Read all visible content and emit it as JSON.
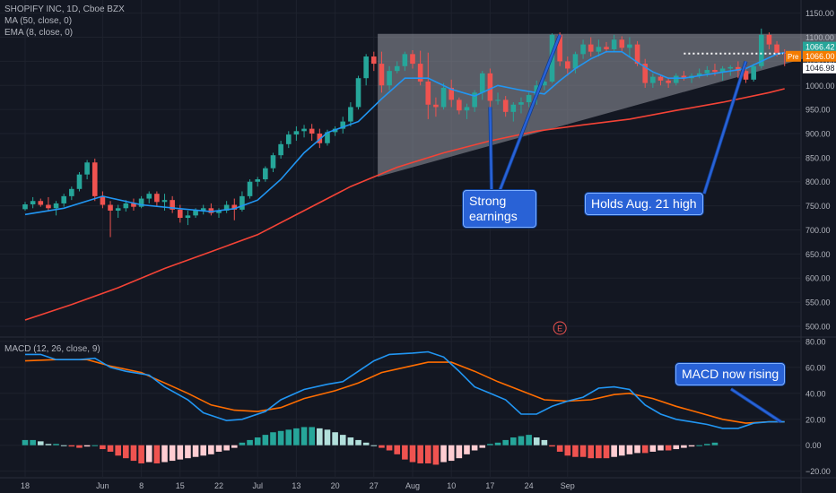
{
  "legend": {
    "line1": "SHOPIFY INC, 1D, Cboe BZX",
    "line2": "MA (50, close, 0)",
    "line3": "EMA (8, close, 0)",
    "macd": "MACD (12, 26, close, 9)"
  },
  "callouts": {
    "earnings": "Strong earnings",
    "holds": "Holds Aug. 21 high",
    "macd": "MACD now rising"
  },
  "price_tags": {
    "last": "1066.42",
    "pre_label": "Pre",
    "pre_value": "1066.00",
    "level": "1046.98"
  },
  "earnings_marker": "E",
  "colors": {
    "background": "#131722",
    "up": "#26a69a",
    "down": "#ef5350",
    "ema": "#2196f3",
    "ma": "#f44336",
    "macd_line": "#2196f3",
    "signal_line": "#ff6d00",
    "hist_up_strong": "#26a69a",
    "hist_up_weak": "#b2dfdb",
    "hist_down_strong": "#ef5350",
    "hist_down_weak": "#ffcdd2",
    "triangle": "#9598a1",
    "pre_tag": "#f57c00",
    "last_tag": "#26a69a"
  },
  "chart_data": [
    {
      "type": "candlestick",
      "title": "SHOPIFY INC, 1D, Cboe BZX",
      "ylim": [
        485,
        1168
      ],
      "y_ticks": [
        500,
        550,
        600,
        650,
        700,
        750,
        800,
        850,
        900,
        950,
        1000,
        1050,
        1100,
        1150
      ],
      "y_tick_labels": [
        "500.00",
        "550.00",
        "600.00",
        "650.00",
        "700.00",
        "750.00",
        "800.00",
        "850.00",
        "900.00",
        "950.00",
        "1000.00",
        "1050.00",
        "1100.00",
        "1150.00"
      ],
      "x_tick_labels": [
        "18",
        "Jun",
        "8",
        "15",
        "22",
        "Jul",
        "13",
        "20",
        "27",
        "Aug",
        "10",
        "17",
        "24",
        "Sep"
      ],
      "x_tick_days": [
        0,
        10,
        15,
        20,
        25,
        30,
        35,
        40,
        45,
        50,
        55,
        60,
        65,
        70
      ],
      "candles": [
        [
          743,
          758,
          740,
          753
        ],
        [
          753,
          768,
          745,
          760
        ],
        [
          760,
          765,
          748,
          752
        ],
        [
          752,
          768,
          738,
          745
        ],
        [
          745,
          760,
          730,
          755
        ],
        [
          755,
          775,
          748,
          770
        ],
        [
          770,
          790,
          762,
          785
        ],
        [
          785,
          820,
          780,
          815
        ],
        [
          815,
          845,
          805,
          840
        ],
        [
          840,
          848,
          760,
          770
        ],
        [
          770,
          780,
          745,
          752
        ],
        [
          752,
          760,
          685,
          740
        ],
        [
          740,
          752,
          725,
          745
        ],
        [
          745,
          762,
          738,
          755
        ],
        [
          755,
          765,
          740,
          748
        ],
        [
          748,
          770,
          745,
          765
        ],
        [
          765,
          780,
          755,
          775
        ],
        [
          775,
          780,
          750,
          758
        ],
        [
          758,
          775,
          740,
          762
        ],
        [
          762,
          770,
          735,
          742
        ],
        [
          742,
          752,
          715,
          725
        ],
        [
          725,
          740,
          710,
          730
        ],
        [
          730,
          745,
          725,
          740
        ],
        [
          740,
          752,
          732,
          745
        ],
        [
          745,
          755,
          730,
          735
        ],
        [
          735,
          745,
          725,
          740
        ],
        [
          740,
          760,
          735,
          752
        ],
        [
          752,
          765,
          720,
          742
        ],
        [
          742,
          780,
          738,
          770
        ],
        [
          770,
          805,
          765,
          800
        ],
        [
          800,
          810,
          790,
          805
        ],
        [
          805,
          832,
          800,
          828
        ],
        [
          828,
          860,
          820,
          855
        ],
        [
          855,
          885,
          848,
          878
        ],
        [
          878,
          905,
          870,
          898
        ],
        [
          898,
          915,
          885,
          905
        ],
        [
          905,
          918,
          892,
          910
        ],
        [
          910,
          920,
          885,
          900
        ],
        [
          900,
          910,
          870,
          880
        ],
        [
          880,
          908,
          875,
          903
        ],
        [
          903,
          915,
          895,
          910
        ],
        [
          910,
          935,
          900,
          925
        ],
        [
          925,
          965,
          915,
          955
        ],
        [
          955,
          1020,
          950,
          1015
        ],
        [
          1015,
          1065,
          1000,
          1060
        ],
        [
          1060,
          1070,
          1030,
          1045
        ],
        [
          1045,
          1070,
          985,
          1000
        ],
        [
          1000,
          1040,
          990,
          1030
        ],
        [
          1030,
          1050,
          1025,
          1040
        ],
        [
          1040,
          1070,
          1030,
          1065
        ],
        [
          1065,
          1073,
          1035,
          1045
        ],
        [
          1045,
          1072,
          1000,
          1008
        ],
        [
          1008,
          1068,
          930,
          960
        ],
        [
          960,
          975,
          935,
          955
        ],
        [
          955,
          1005,
          950,
          995
        ],
        [
          995,
          1012,
          955,
          970
        ],
        [
          970,
          975,
          940,
          948
        ],
        [
          948,
          962,
          930,
          955
        ],
        [
          955,
          990,
          945,
          985
        ],
        [
          985,
          1030,
          970,
          1025
        ],
        [
          1025,
          1035,
          950,
          968
        ],
        [
          968,
          985,
          960,
          970
        ],
        [
          970,
          978,
          935,
          945
        ],
        [
          945,
          965,
          925,
          960
        ],
        [
          960,
          975,
          942,
          965
        ],
        [
          965,
          985,
          955,
          980
        ],
        [
          980,
          1010,
          960,
          1000
        ],
        [
          1000,
          1015,
          990,
          1008
        ],
        [
          1008,
          1108,
          1005,
          1105
        ],
        [
          1105,
          1110,
          1040,
          1050
        ],
        [
          1050,
          1060,
          1020,
          1035
        ],
        [
          1035,
          1070,
          1025,
          1065
        ],
        [
          1065,
          1095,
          1055,
          1085
        ],
        [
          1085,
          1100,
          1060,
          1070
        ],
        [
          1070,
          1095,
          1060,
          1080
        ],
        [
          1080,
          1090,
          1068,
          1075
        ],
        [
          1075,
          1105,
          1070,
          1095
        ],
        [
          1095,
          1102,
          1070,
          1078
        ],
        [
          1078,
          1100,
          1060,
          1085
        ],
        [
          1085,
          1092,
          1040,
          1045
        ],
        [
          1045,
          1055,
          995,
          1005
        ],
        [
          1005,
          1025,
          995,
          1018
        ],
        [
          1018,
          1022,
          1000,
          1010
        ],
        [
          1010,
          1015,
          995,
          1005
        ],
        [
          1005,
          1025,
          1000,
          1020
        ],
        [
          1020,
          1030,
          1010,
          1015
        ],
        [
          1015,
          1025,
          1005,
          1020
        ],
        [
          1020,
          1035,
          1015,
          1025
        ],
        [
          1025,
          1040,
          1018,
          1032
        ],
        [
          1032,
          1045,
          1020,
          1028
        ],
        [
          1028,
          1040,
          1010,
          1035
        ],
        [
          1035,
          1042,
          1020,
          1038
        ],
        [
          1038,
          1050,
          1015,
          1030
        ],
        [
          1030,
          1040,
          1005,
          1012
        ],
        [
          1012,
          1045,
          1008,
          1040
        ],
        [
          1040,
          1118,
          1035,
          1105
        ],
        [
          1105,
          1110,
          1075,
          1085
        ],
        [
          1085,
          1092,
          1060,
          1068
        ],
        [
          1068,
          1075,
          1040,
          1066
        ]
      ],
      "ema8": [
        [
          0,
          732
        ],
        [
          5,
          745
        ],
        [
          10,
          770
        ],
        [
          15,
          752
        ],
        [
          20,
          744
        ],
        [
          24,
          738
        ],
        [
          27,
          744
        ],
        [
          30,
          762
        ],
        [
          33,
          805
        ],
        [
          36,
          860
        ],
        [
          39,
          902
        ],
        [
          43,
          925
        ],
        [
          46,
          972
        ],
        [
          49,
          1015
        ],
        [
          52,
          1015
        ],
        [
          55,
          992
        ],
        [
          58,
          978
        ],
        [
          61,
          1000
        ],
        [
          64,
          990
        ],
        [
          67,
          982
        ],
        [
          69,
          1010
        ],
        [
          71,
          1035
        ],
        [
          73,
          1055
        ],
        [
          75,
          1070
        ],
        [
          77,
          1070
        ],
        [
          79,
          1048
        ],
        [
          81,
          1028
        ],
        [
          83,
          1015
        ],
        [
          85,
          1015
        ],
        [
          87,
          1020
        ],
        [
          89,
          1025
        ],
        [
          91,
          1030
        ],
        [
          93,
          1035
        ],
        [
          95,
          1050
        ],
        [
          97,
          1065
        ],
        [
          98,
          1068
        ]
      ],
      "ma50": [
        [
          0,
          513
        ],
        [
          6,
          545
        ],
        [
          12,
          580
        ],
        [
          18,
          620
        ],
        [
          24,
          655
        ],
        [
          30,
          690
        ],
        [
          36,
          740
        ],
        [
          42,
          790
        ],
        [
          48,
          830
        ],
        [
          54,
          860
        ],
        [
          60,
          885
        ],
        [
          66,
          905
        ],
        [
          72,
          918
        ],
        [
          78,
          930
        ],
        [
          84,
          948
        ],
        [
          90,
          965
        ],
        [
          96,
          985
        ],
        [
          98,
          993
        ]
      ],
      "triangle": [
        [
          45.5,
          1107
        ],
        [
          112,
          1107
        ],
        [
          45.5,
          810
        ]
      ],
      "horizontal_level": 1066,
      "earnings_day": 69
    },
    {
      "type": "line",
      "title": "MACD (12, 26, close, 9)",
      "ylim": [
        -23,
        82
      ],
      "y_ticks": [
        -20,
        0,
        20,
        40,
        60,
        80
      ],
      "y_tick_labels": [
        "−20.00",
        "0.00",
        "20.00",
        "40.00",
        "60.00",
        "80.00"
      ],
      "series": [
        {
          "name": "MACD",
          "points": [
            [
              0,
              70
            ],
            [
              2,
              70
            ],
            [
              4,
              66
            ],
            [
              7,
              66
            ],
            [
              9,
              67
            ],
            [
              11,
              60
            ],
            [
              13,
              57
            ],
            [
              16,
              54
            ],
            [
              18,
              45
            ],
            [
              21,
              35
            ],
            [
              23,
              25
            ],
            [
              26,
              19
            ],
            [
              28,
              20
            ],
            [
              31,
              26
            ],
            [
              33,
              35
            ],
            [
              36,
              43
            ],
            [
              39,
              47
            ],
            [
              41,
              49
            ],
            [
              43,
              57
            ],
            [
              45,
              65
            ],
            [
              47,
              70
            ],
            [
              50,
              71
            ],
            [
              52,
              72
            ],
            [
              54,
              68
            ],
            [
              56,
              57
            ],
            [
              58,
              45
            ],
            [
              60,
              40
            ],
            [
              62,
              35
            ],
            [
              64,
              24
            ],
            [
              66,
              24
            ],
            [
              68,
              30
            ],
            [
              70,
              34
            ],
            [
              72,
              37
            ],
            [
              74,
              44
            ],
            [
              76,
              45
            ],
            [
              78,
              43
            ],
            [
              80,
              31
            ],
            [
              82,
              24
            ],
            [
              84,
              20
            ],
            [
              86,
              18
            ],
            [
              88,
              16
            ],
            [
              90,
              13
            ],
            [
              92,
              13
            ],
            [
              94,
              17
            ],
            [
              96,
              18
            ],
            [
              98,
              18
            ]
          ]
        },
        {
          "name": "Signal",
          "points": [
            [
              0,
              65
            ],
            [
              4,
              66
            ],
            [
              8,
              66
            ],
            [
              11,
              61
            ],
            [
              15,
              56
            ],
            [
              18,
              48
            ],
            [
              21,
              40
            ],
            [
              24,
              31
            ],
            [
              27,
              27
            ],
            [
              30,
              26
            ],
            [
              33,
              29
            ],
            [
              36,
              36
            ],
            [
              40,
              42
            ],
            [
              43,
              48
            ],
            [
              46,
              56
            ],
            [
              49,
              60
            ],
            [
              52,
              64
            ],
            [
              55,
              64
            ],
            [
              58,
              57
            ],
            [
              61,
              49
            ],
            [
              64,
              42
            ],
            [
              67,
              35
            ],
            [
              70,
              34
            ],
            [
              73,
              35
            ],
            [
              76,
              39
            ],
            [
              78,
              40
            ],
            [
              81,
              36
            ],
            [
              84,
              30
            ],
            [
              87,
              25
            ],
            [
              90,
              20
            ],
            [
              93,
              17
            ],
            [
              96,
              18
            ],
            [
              98,
              18
            ]
          ]
        }
      ],
      "histogram": [
        4,
        4,
        3,
        1,
        1,
        0,
        -1,
        -2,
        -1,
        0,
        -3,
        -5,
        -8,
        -10,
        -12,
        -14,
        -13,
        -14,
        -13,
        -12,
        -11,
        -10,
        -9,
        -8,
        -7,
        -5,
        -4,
        -2,
        2,
        4,
        6,
        8,
        10,
        11,
        12,
        13,
        14,
        14,
        13,
        12,
        10,
        8,
        6,
        4,
        2,
        0,
        -2,
        -4,
        -7,
        -11,
        -13,
        -14,
        -14,
        -15,
        -13,
        -12,
        -10,
        -7,
        -4,
        -2,
        1,
        2,
        4,
        6,
        7,
        8,
        6,
        4,
        -1,
        -5,
        -8,
        -9,
        -9,
        -10,
        -10,
        -10,
        -9,
        -8,
        -7,
        -6,
        -6,
        -5,
        -4,
        -4,
        -3,
        -2,
        -1,
        0,
        1,
        2
      ]
    }
  ]
}
